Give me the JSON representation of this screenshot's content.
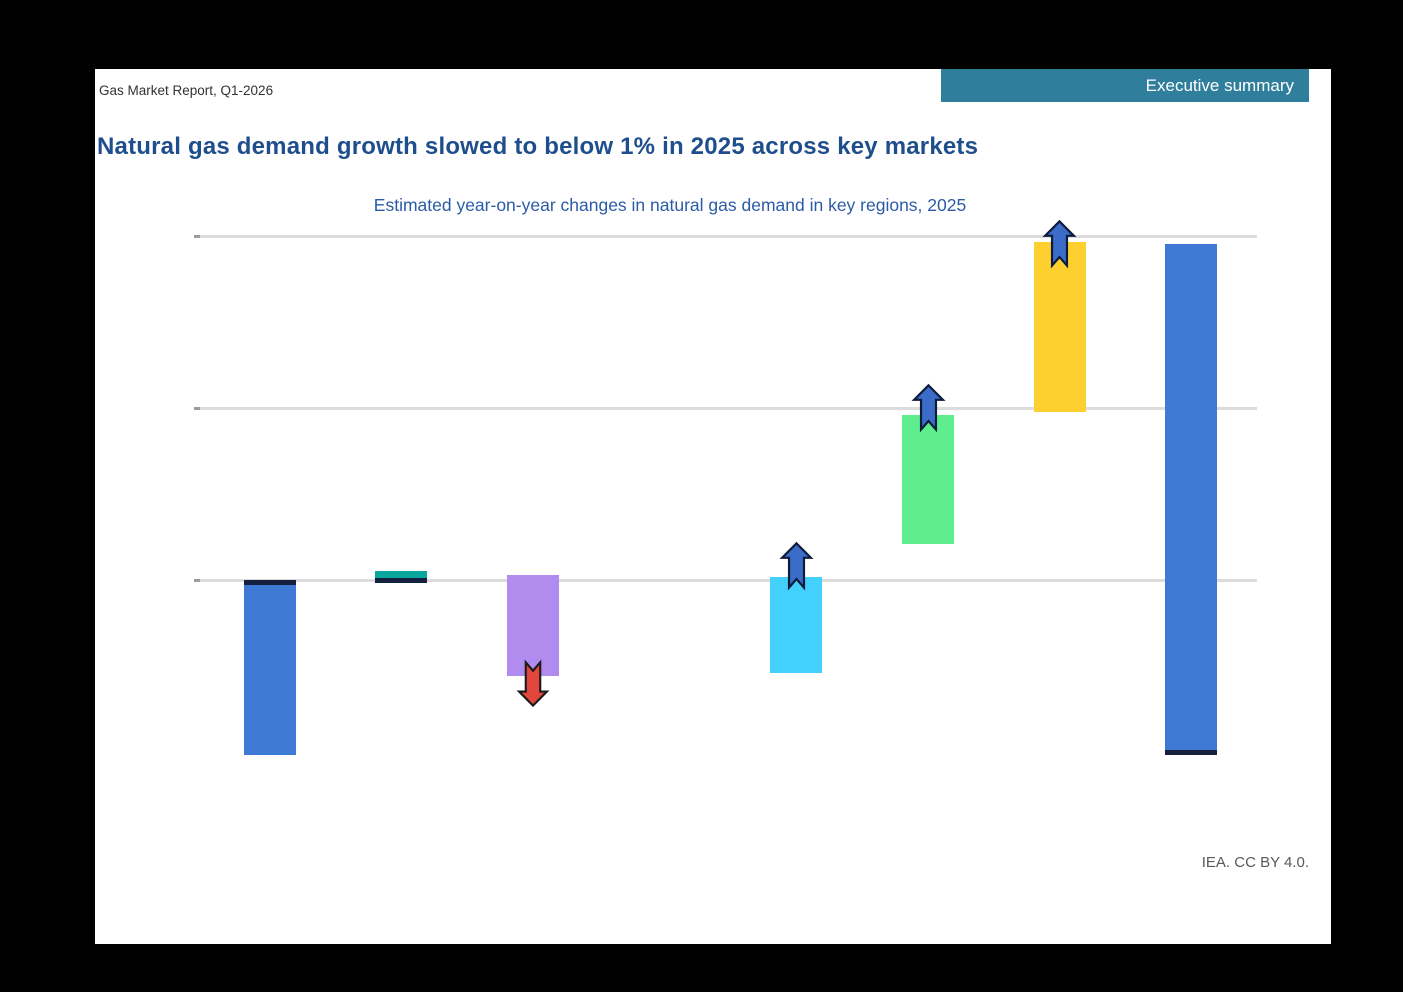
{
  "page": {
    "outer_background": "#000000",
    "panel_background": "#ffffff"
  },
  "header": {
    "report_label": "Gas Market Report, Q1-2026",
    "banner": {
      "label": "Executive summary",
      "background": "#2f7f9c",
      "text_color": "#ffffff"
    }
  },
  "title": {
    "text": "Natural gas demand growth slowed to below 1% in 2025 across key markets",
    "color": "#1f4e8c"
  },
  "credit": "IEA. CC BY 4.0.",
  "chart_data": {
    "type": "bar",
    "subtype": "floating-range-bars-with-trend-arrows",
    "title": "Estimated year-on-year changes in natural gas demand in key regions, 2025",
    "title_color": "#2b5ba6",
    "x_axis": {
      "category_labels_visible": false,
      "slots": 8,
      "note": "8 evenly spaced slots; slot index 3 is empty (no bar)"
    },
    "y_axis": {
      "tick_labels_visible": false,
      "gridline_values": [
        0,
        10,
        20
      ],
      "gridline_color": "#dcdcdc",
      "tick_color": "#9c9c9c",
      "units_note": "no axis labels visible in image; values estimated assuming one gridline interval = 10"
    },
    "cap_color": "#14203e",
    "legend": null,
    "bars": [
      {
        "slot": 0,
        "from": 0.0,
        "to": -10.2,
        "color": "#3e79d6",
        "cap": "top",
        "arrow": "none"
      },
      {
        "slot": 1,
        "from": 0.5,
        "to": -0.2,
        "color": "#09a89c",
        "cap": "bottom",
        "arrow": "none"
      },
      {
        "slot": 2,
        "from": 0.3,
        "to": -5.6,
        "color": "#b28bef",
        "cap": "none",
        "arrow": "down",
        "arrow_tip": -7.4,
        "arrow_color": "#e2473e",
        "arrow_outline": "#1a1a1a"
      },
      {
        "slot": 4,
        "from": 0.2,
        "to": -5.4,
        "color": "#43d0fc",
        "cap": "none",
        "arrow": "up",
        "arrow_tip": 2.2,
        "arrow_color": "#3a6cc8",
        "arrow_outline": "#0e1c3c"
      },
      {
        "slot": 5,
        "from": 9.6,
        "to": 2.1,
        "color": "#5fee8e",
        "cap": "none",
        "arrow": "up",
        "arrow_tip": 11.4,
        "arrow_color": "#3a6cc8",
        "arrow_outline": "#0e1c3c"
      },
      {
        "slot": 6,
        "from": 19.7,
        "to": 9.8,
        "color": "#fed02f",
        "cap": "none",
        "arrow": "up",
        "arrow_tip": 21.0,
        "arrow_color": "#3a6cc8",
        "arrow_outline": "#0e1c3c"
      },
      {
        "slot": 7,
        "from": 19.6,
        "to": -10.2,
        "color": "#3e79d6",
        "cap": "bottom",
        "arrow": "none"
      }
    ]
  }
}
